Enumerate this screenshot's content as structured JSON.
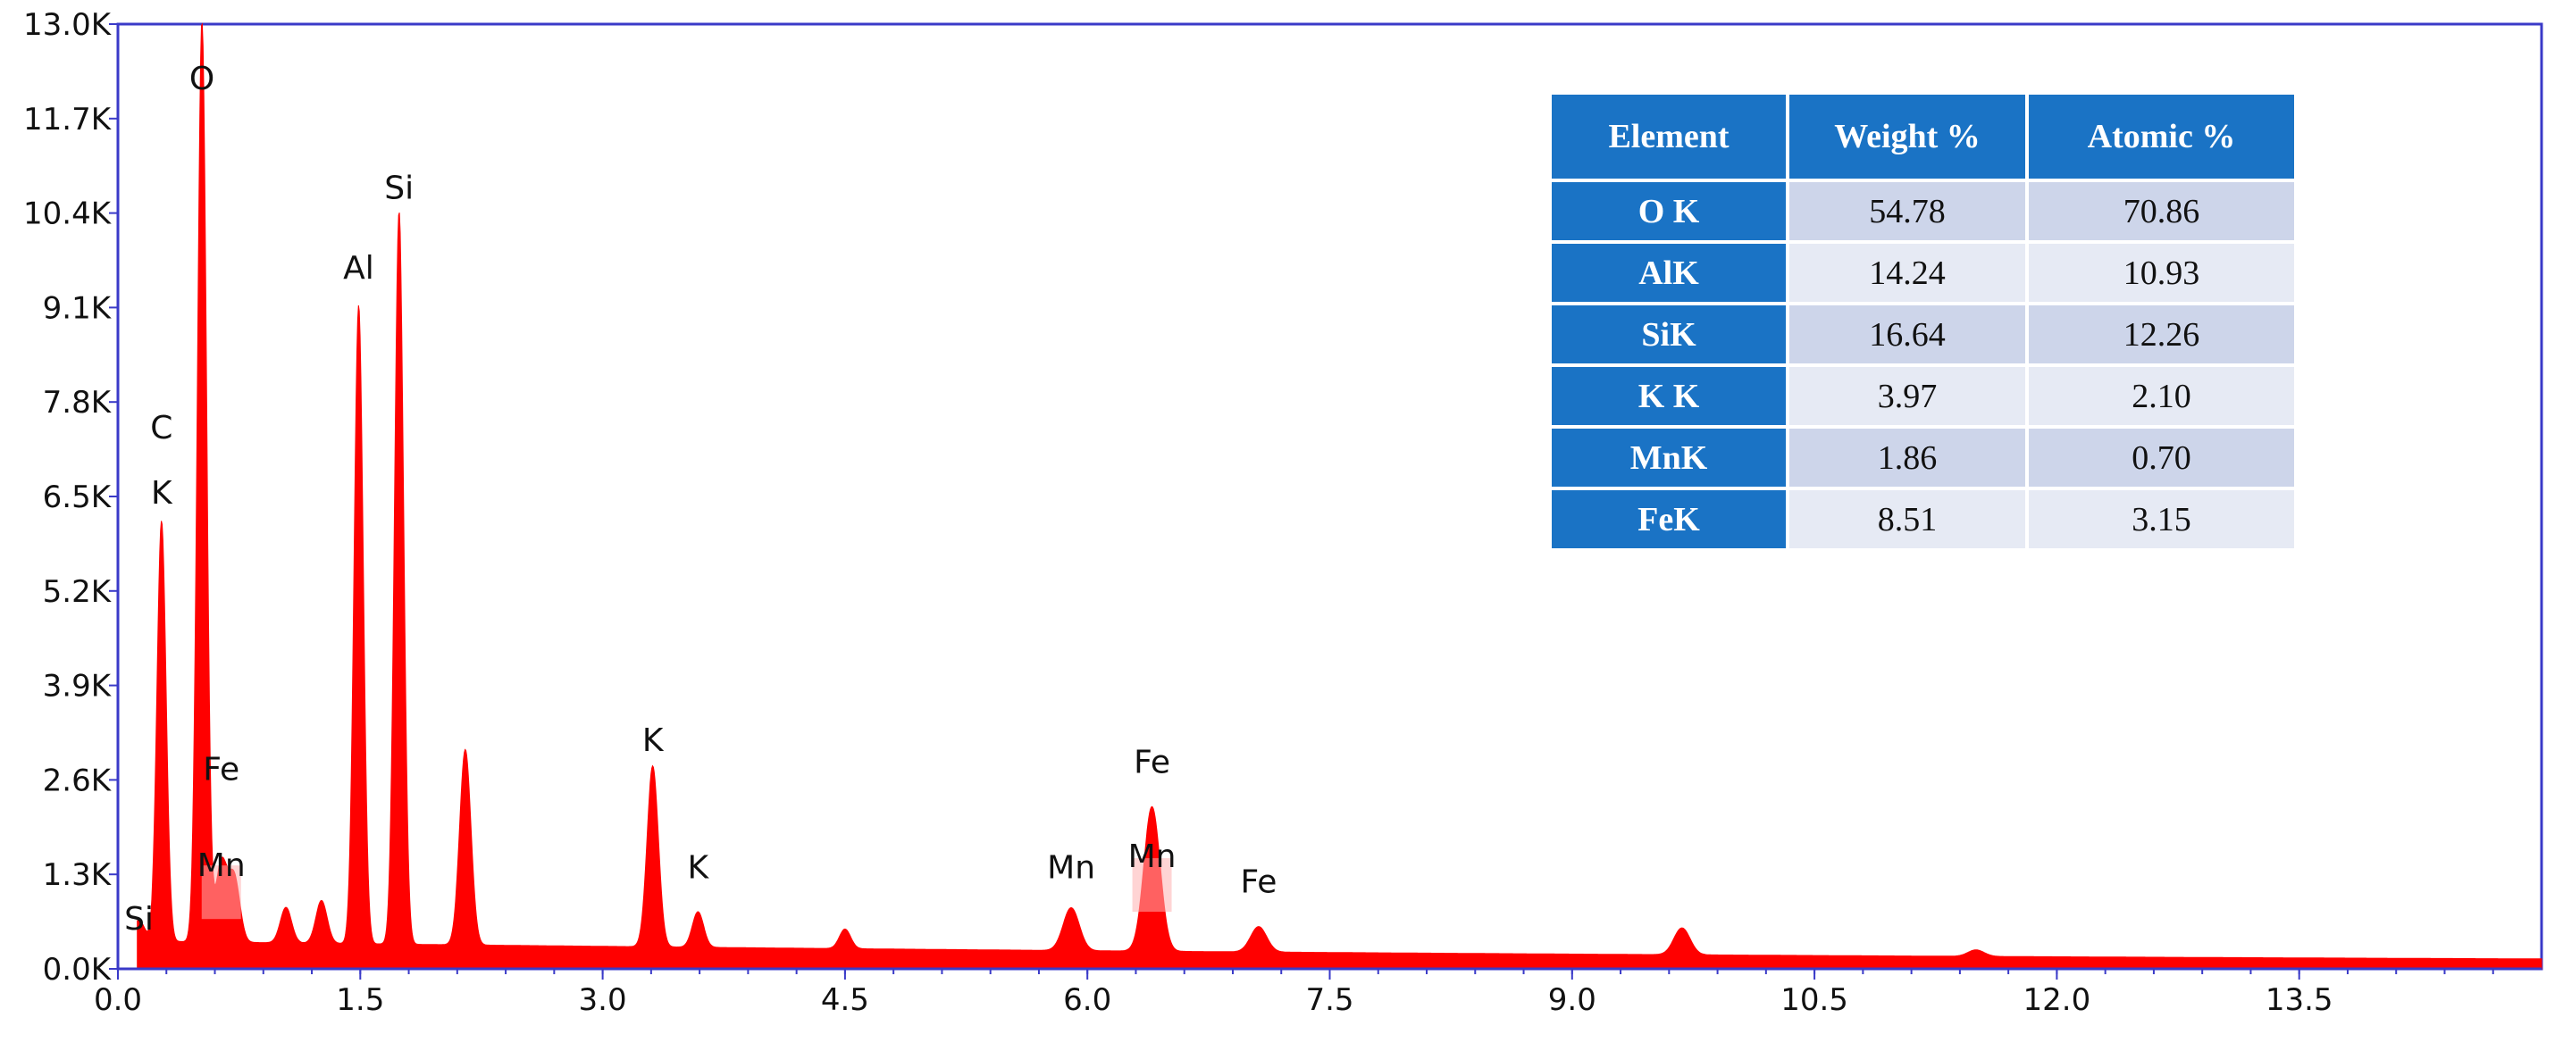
{
  "chart_data": {
    "type": "area",
    "xlim": [
      0,
      15
    ],
    "ylim": [
      0,
      13000
    ],
    "xticks": [
      "0.0",
      "1.5",
      "3.0",
      "4.5",
      "6.0",
      "7.5",
      "9.0",
      "10.5",
      "12.0",
      "13.5"
    ],
    "yticks": [
      "0.0K",
      "1.3K",
      "2.6K",
      "3.9K",
      "5.2K",
      "6.5K",
      "7.8K",
      "9.1K",
      "10.4K",
      "11.7K",
      "13.0K"
    ],
    "grid": false,
    "color": "#ff0000",
    "background": 350,
    "peaks": [
      {
        "x": 0.13,
        "y": 500
      },
      {
        "x": 0.27,
        "y": 6000
      },
      {
        "x": 0.52,
        "y": 12900
      },
      {
        "x": 0.64,
        "y": 1300
      },
      {
        "x": 0.72,
        "y": 1100
      },
      {
        "x": 1.04,
        "y": 700
      },
      {
        "x": 1.26,
        "y": 800
      },
      {
        "x": 1.49,
        "y": 9000
      },
      {
        "x": 1.74,
        "y": 10300
      },
      {
        "x": 2.15,
        "y": 2900
      },
      {
        "x": 3.31,
        "y": 2700
      },
      {
        "x": 3.59,
        "y": 700
      },
      {
        "x": 4.5,
        "y": 480
      },
      {
        "x": 5.9,
        "y": 800
      },
      {
        "x": 6.4,
        "y": 2200
      },
      {
        "x": 7.06,
        "y": 560
      },
      {
        "x": 9.68,
        "y": 580
      },
      {
        "x": 11.5,
        "y": 300
      }
    ],
    "peak_labels": [
      {
        "text": "Si",
        "x": 0.13,
        "y": 540
      },
      {
        "text": "K",
        "x": 0.27,
        "y": 6400
      },
      {
        "text": "C",
        "x": 0.27,
        "y": 7300
      },
      {
        "text": "O",
        "x": 0.52,
        "y": 12100
      },
      {
        "text": "Fe",
        "x": 0.64,
        "y": 2600
      },
      {
        "text": "Mn",
        "x": 0.64,
        "y": 1280
      },
      {
        "text": "Al",
        "x": 1.49,
        "y": 9500
      },
      {
        "text": "Si",
        "x": 1.74,
        "y": 10600
      },
      {
        "text": "K",
        "x": 3.31,
        "y": 3000
      },
      {
        "text": "K",
        "x": 3.59,
        "y": 1250
      },
      {
        "text": "Mn",
        "x": 5.9,
        "y": 1250
      },
      {
        "text": "Fe",
        "x": 6.4,
        "y": 2700
      },
      {
        "text": "Mn",
        "x": 6.4,
        "y": 1400
      },
      {
        "text": "Fe",
        "x": 7.06,
        "y": 1050
      }
    ]
  },
  "table": {
    "headers": [
      "Element",
      "Weight %",
      "Atomic %"
    ],
    "rows": [
      {
        "element": "O K",
        "weight": "54.78",
        "atomic": "70.86"
      },
      {
        "element": "AlK",
        "weight": "14.24",
        "atomic": "10.93"
      },
      {
        "element": "SiK",
        "weight": "16.64",
        "atomic": "12.26"
      },
      {
        "element": "K K",
        "weight": "3.97",
        "atomic": "2.10"
      },
      {
        "element": "MnK",
        "weight": "1.86",
        "atomic": "0.70"
      },
      {
        "element": "FeK",
        "weight": "8.51",
        "atomic": "3.15"
      }
    ]
  }
}
